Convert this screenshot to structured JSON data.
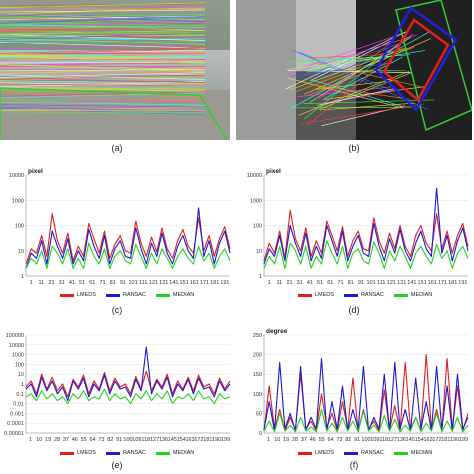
{
  "captions": [
    "(a)",
    "(b)",
    "(c)",
    "(d)",
    "(e)",
    "(f)"
  ],
  "colors": {
    "lmeds": "#e11f1f",
    "ransac": "#1a1ad6",
    "median": "#22d422",
    "match_frame": "#33cc33",
    "box_blue": "#2020e0",
    "box_red": "#e02020"
  },
  "legend": {
    "lmeds": "LMEDS",
    "ransac": "RANSAC",
    "median": "MEDIAN"
  },
  "chart_data": [
    {
      "id": "c",
      "type": "line",
      "unit": "pixel",
      "scale": "log",
      "yticks": [
        "10000",
        "1000",
        "100",
        "10",
        "1"
      ],
      "xticks": [
        "1",
        "11",
        "21",
        "31",
        "41",
        "51",
        "61",
        "71",
        "81",
        "91",
        "101",
        "111",
        "121",
        "131",
        "141",
        "151",
        "161",
        "171",
        "181",
        "191"
      ],
      "series": [
        {
          "name": "LMEDS",
          "values": [
            3,
            12,
            8,
            40,
            6,
            300,
            25,
            8,
            50,
            4,
            15,
            6,
            120,
            30,
            8,
            60,
            5,
            18,
            40,
            10,
            8,
            150,
            20,
            6,
            35,
            9,
            80,
            12,
            5,
            25,
            70,
            15,
            8,
            200,
            10,
            40,
            6,
            30,
            90,
            12
          ]
        },
        {
          "name": "RANSAC",
          "values": [
            2,
            8,
            5,
            25,
            3,
            60,
            15,
            5,
            30,
            3,
            10,
            4,
            70,
            15,
            5,
            40,
            3,
            12,
            25,
            6,
            5,
            80,
            12,
            3,
            20,
            6,
            50,
            8,
            3,
            15,
            40,
            10,
            5,
            500,
            6,
            25,
            3,
            20,
            60,
            8
          ]
        },
        {
          "name": "MEDIAN",
          "values": [
            2,
            5,
            3,
            10,
            2,
            15,
            8,
            3,
            12,
            2,
            5,
            2,
            20,
            6,
            3,
            12,
            2,
            6,
            10,
            4,
            3,
            18,
            6,
            2,
            8,
            3,
            12,
            5,
            2,
            6,
            12,
            5,
            3,
            15,
            4,
            8,
            2,
            6,
            12,
            4
          ]
        }
      ]
    },
    {
      "id": "d",
      "type": "line",
      "unit": "pixel",
      "scale": "log",
      "yticks": [
        "10000",
        "1000",
        "100",
        "10",
        "1"
      ],
      "xticks": [
        "1",
        "11",
        "21",
        "31",
        "41",
        "51",
        "61",
        "71",
        "81",
        "91",
        "101",
        "111",
        "121",
        "131",
        "141",
        "151",
        "161",
        "171",
        "181",
        "191"
      ],
      "series": [
        {
          "name": "LMEDS",
          "values": [
            4,
            20,
            8,
            60,
            5,
            400,
            30,
            10,
            80,
            6,
            25,
            8,
            150,
            40,
            10,
            90,
            6,
            25,
            60,
            12,
            10,
            200,
            25,
            8,
            50,
            12,
            100,
            15,
            6,
            40,
            100,
            20,
            10,
            300,
            12,
            60,
            8,
            40,
            120,
            15
          ]
        },
        {
          "name": "RANSAC",
          "values": [
            3,
            12,
            6,
            40,
            4,
            100,
            20,
            6,
            50,
            4,
            15,
            5,
            100,
            25,
            6,
            60,
            4,
            15,
            40,
            8,
            6,
            120,
            15,
            4,
            30,
            8,
            70,
            10,
            4,
            20,
            60,
            12,
            6,
            3000,
            8,
            40,
            4,
            25,
            80,
            10
          ]
        },
        {
          "name": "MEDIAN",
          "values": [
            2,
            6,
            3,
            15,
            2,
            20,
            10,
            3,
            15,
            2,
            6,
            3,
            25,
            8,
            3,
            15,
            2,
            8,
            12,
            4,
            3,
            22,
            8,
            2,
            10,
            4,
            15,
            6,
            2,
            8,
            15,
            6,
            3,
            18,
            5,
            10,
            2,
            8,
            15,
            5
          ]
        }
      ]
    },
    {
      "id": "e",
      "type": "line",
      "scale": "log",
      "yticks": [
        "100000",
        "10000",
        "1000",
        "100",
        "10",
        "1",
        "0.1",
        "0.01",
        "0.001",
        "0.0001",
        "0.00001"
      ],
      "xticks": [
        "1",
        "10",
        "19",
        "28",
        "37",
        "46",
        "55",
        "64",
        "73",
        "82",
        "91",
        "100",
        "109",
        "118",
        "127",
        "136",
        "145",
        "154",
        "163",
        "172",
        "181",
        "190",
        "199"
      ],
      "series": [
        {
          "name": "LMEDS",
          "values": [
            0.5,
            2,
            0.1,
            10,
            0.3,
            5,
            0.2,
            1,
            0.05,
            3,
            0.5,
            8,
            0.1,
            2,
            0.3,
            15,
            0.2,
            4,
            0.5,
            1,
            0.1,
            6,
            0.3,
            20,
            0.2,
            3,
            0.5,
            10,
            0.1,
            2,
            0.3,
            5,
            0.2,
            8,
            0.5,
            1,
            0.1,
            4,
            0.3,
            2
          ]
        },
        {
          "name": "RANSAC",
          "values": [
            0.3,
            1,
            0.05,
            5,
            0.2,
            2,
            0.1,
            0.5,
            0.02,
            2,
            0.3,
            4,
            0.05,
            1,
            0.2,
            8,
            0.1,
            2,
            0.3,
            0.5,
            0.05,
            3,
            0.2,
            6000,
            0.1,
            2,
            0.3,
            5,
            0.05,
            1,
            0.2,
            3,
            0.1,
            4,
            0.3,
            0.5,
            0.05,
            2,
            0.2,
            1
          ]
        },
        {
          "name": "MEDIAN",
          "values": [
            0.05,
            0.1,
            0.02,
            0.2,
            0.03,
            0.1,
            0.02,
            0.05,
            0.01,
            0.1,
            0.03,
            0.2,
            0.02,
            0.05,
            0.03,
            0.3,
            0.02,
            0.1,
            0.03,
            0.05,
            0.01,
            0.1,
            0.03,
            0.2,
            0.02,
            0.1,
            0.03,
            0.2,
            0.01,
            0.05,
            0.03,
            0.1,
            0.02,
            0.2,
            0.03,
            0.05,
            0.01,
            0.1,
            0.03,
            0.05
          ]
        }
      ]
    },
    {
      "id": "f",
      "type": "line",
      "unit": "degree",
      "scale": "linear",
      "ylim": [
        0,
        250
      ],
      "yticks": [
        "250",
        "200",
        "150",
        "100",
        "50",
        "0"
      ],
      "xticks": [
        "1",
        "10",
        "19",
        "28",
        "37",
        "46",
        "55",
        "64",
        "73",
        "82",
        "91",
        "100",
        "109",
        "118",
        "127",
        "136",
        "145",
        "154",
        "163",
        "172",
        "181",
        "190",
        "199"
      ],
      "series": [
        {
          "name": "LMEDS",
          "values": [
            5,
            120,
            10,
            60,
            5,
            40,
            8,
            150,
            10,
            30,
            5,
            100,
            15,
            50,
            5,
            80,
            10,
            140,
            5,
            60,
            10,
            30,
            5,
            110,
            8,
            70,
            5,
            180,
            10,
            40,
            5,
            200,
            8,
            60,
            5,
            190,
            10,
            120,
            5,
            50
          ]
        },
        {
          "name": "RANSAC",
          "values": [
            10,
            80,
            5,
            180,
            10,
            50,
            5,
            170,
            8,
            40,
            10,
            190,
            5,
            80,
            10,
            120,
            5,
            60,
            10,
            170,
            5,
            40,
            10,
            150,
            5,
            180,
            10,
            60,
            5,
            140,
            10,
            80,
            5,
            170,
            10,
            120,
            5,
            150,
            10,
            40
          ]
        },
        {
          "name": "MEDIAN",
          "values": [
            5,
            30,
            3,
            50,
            5,
            20,
            3,
            40,
            5,
            15,
            3,
            60,
            5,
            25,
            3,
            40,
            5,
            30,
            3,
            55,
            5,
            20,
            3,
            45,
            5,
            35,
            3,
            20,
            5,
            40,
            3,
            25,
            5,
            50,
            3,
            30,
            5,
            40,
            3,
            20
          ]
        }
      ]
    }
  ]
}
